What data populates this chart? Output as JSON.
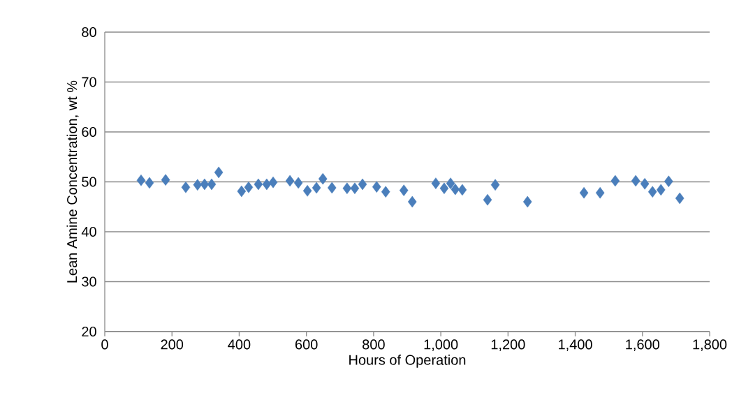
{
  "chart_data": {
    "type": "scatter",
    "xlabel": "Hours of Operation",
    "ylabel": "Lean Amine Concentration, wt %",
    "x": [
      108,
      133,
      181,
      241,
      276,
      297,
      318,
      339,
      407,
      428,
      457,
      482,
      501,
      551,
      576,
      603,
      630,
      649,
      676,
      721,
      744,
      767,
      809,
      836,
      890,
      915,
      985,
      1010,
      1029,
      1043,
      1064,
      1139,
      1162,
      1258,
      1426,
      1474,
      1519,
      1580,
      1607,
      1630,
      1655,
      1678,
      1711
    ],
    "values": [
      50.3,
      49.8,
      50.4,
      48.9,
      49.4,
      49.5,
      49.5,
      51.9,
      48.1,
      48.9,
      49.5,
      49.5,
      49.9,
      50.2,
      49.8,
      48.2,
      48.8,
      50.6,
      48.8,
      48.7,
      48.7,
      49.5,
      49.0,
      48.0,
      48.3,
      46.0,
      49.7,
      48.7,
      49.7,
      48.5,
      48.4,
      46.4,
      49.4,
      46.0,
      47.8,
      47.8,
      50.2,
      50.2,
      49.6,
      48.0,
      48.4,
      50.1,
      46.7
    ],
    "color": "#4a7ebb",
    "marker": "diamond",
    "grid": "y",
    "xlim": [
      0,
      1800
    ],
    "ylim": [
      20,
      80
    ],
    "xticks": [
      0,
      200,
      400,
      600,
      800,
      {
        "value": 1000,
        "label": "1,000"
      },
      {
        "value": 1200,
        "label": "1,200"
      },
      {
        "value": 1400,
        "label": "1,400"
      },
      {
        "value": 1600,
        "label": "1,600"
      },
      {
        "value": 1800,
        "label": "1,800"
      }
    ],
    "yticks": [
      20,
      30,
      40,
      50,
      60,
      70,
      80
    ]
  }
}
